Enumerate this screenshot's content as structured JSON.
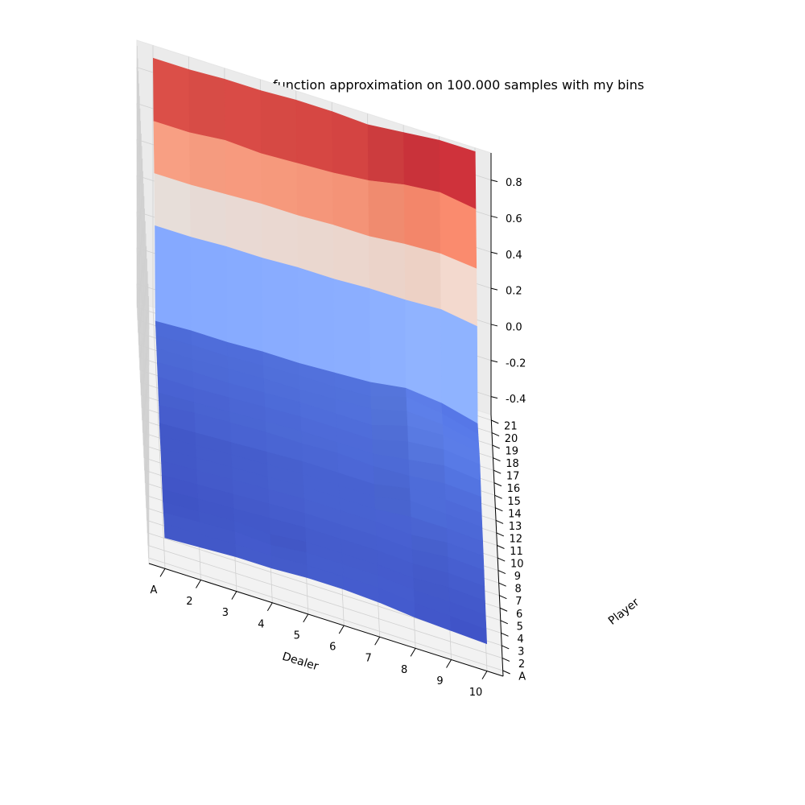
{
  "chart_data": {
    "type": "surface",
    "title": "TD(0) with linear function approximation on 100.000 samples with my bins",
    "xlabel": "Dealer",
    "ylabel": "Player",
    "zlabel": "",
    "colormap": "coolwarm",
    "x_categories": [
      "A",
      "2",
      "3",
      "4",
      "5",
      "6",
      "7",
      "8",
      "9",
      "10"
    ],
    "y_categories": [
      "A",
      "2",
      "3",
      "4",
      "5",
      "6",
      "7",
      "8",
      "9",
      "10",
      "11",
      "12",
      "13",
      "14",
      "15",
      "16",
      "17",
      "18",
      "19",
      "20",
      "21"
    ],
    "z_ticks": [
      -0.4,
      -0.2,
      0.0,
      0.2,
      0.4,
      0.6,
      0.8
    ],
    "zlim": [
      -0.5,
      0.95
    ],
    "grid": true,
    "values": [
      [
        -0.36,
        -0.35,
        -0.36,
        -0.37,
        -0.37,
        -0.36,
        -0.35,
        -0.35,
        -0.35,
        -0.35,
        -0.32,
        -0.32,
        -0.3,
        -0.29,
        -0.28,
        -0.28,
        -0.27,
        0.19,
        0.41,
        0.63,
        0.91
      ],
      [
        -0.35,
        -0.35,
        -0.35,
        -0.36,
        -0.36,
        -0.35,
        -0.34,
        -0.34,
        -0.34,
        -0.34,
        -0.3,
        -0.31,
        -0.3,
        -0.28,
        -0.28,
        -0.27,
        -0.26,
        0.19,
        0.41,
        0.63,
        0.91
      ],
      [
        -0.34,
        -0.34,
        -0.34,
        -0.35,
        -0.35,
        -0.34,
        -0.33,
        -0.33,
        -0.33,
        -0.33,
        -0.29,
        -0.3,
        -0.29,
        -0.28,
        -0.27,
        -0.27,
        -0.26,
        0.2,
        0.42,
        0.65,
        0.92
      ],
      [
        -0.34,
        -0.34,
        -0.35,
        -0.36,
        -0.34,
        -0.33,
        -0.32,
        -0.32,
        -0.32,
        -0.32,
        -0.28,
        -0.29,
        -0.28,
        -0.27,
        -0.26,
        -0.26,
        -0.25,
        0.2,
        0.43,
        0.64,
        0.92
      ],
      [
        -0.33,
        -0.33,
        -0.33,
        -0.34,
        -0.33,
        -0.32,
        -0.31,
        -0.31,
        -0.31,
        -0.31,
        -0.28,
        -0.28,
        -0.27,
        -0.26,
        -0.26,
        -0.25,
        -0.25,
        0.21,
        0.43,
        0.65,
        0.93
      ],
      [
        -0.33,
        -0.33,
        -0.33,
        -0.34,
        -0.33,
        -0.32,
        -0.31,
        -0.31,
        -0.31,
        -0.31,
        -0.27,
        -0.28,
        -0.27,
        -0.26,
        -0.25,
        -0.25,
        -0.24,
        0.21,
        0.44,
        0.66,
        0.93
      ],
      [
        -0.34,
        -0.33,
        -0.33,
        -0.34,
        -0.33,
        -0.32,
        -0.31,
        -0.31,
        -0.31,
        -0.31,
        -0.28,
        -0.28,
        -0.27,
        -0.26,
        -0.24,
        -0.24,
        -0.23,
        0.22,
        0.44,
        0.68,
        0.92
      ],
      [
        -0.36,
        -0.35,
        -0.35,
        -0.35,
        -0.34,
        -0.33,
        -0.32,
        -0.29,
        -0.27,
        -0.27,
        -0.27,
        -0.25,
        -0.22,
        -0.2,
        -0.19,
        -0.18,
        -0.2,
        0.22,
        0.46,
        0.72,
        0.94
      ],
      [
        -0.37,
        -0.36,
        -0.35,
        -0.34,
        -0.33,
        -0.31,
        -0.3,
        -0.29,
        -0.28,
        -0.27,
        -0.25,
        -0.22,
        -0.2,
        -0.19,
        -0.2,
        -0.21,
        -0.22,
        0.23,
        0.47,
        0.74,
        0.96
      ],
      [
        -0.38,
        -0.37,
        -0.36,
        -0.35,
        -0.34,
        -0.32,
        -0.31,
        -0.3,
        -0.29,
        -0.28,
        -0.26,
        -0.24,
        -0.22,
        -0.22,
        -0.24,
        -0.26,
        -0.27,
        0.2,
        0.45,
        0.71,
        0.96
      ]
    ]
  }
}
